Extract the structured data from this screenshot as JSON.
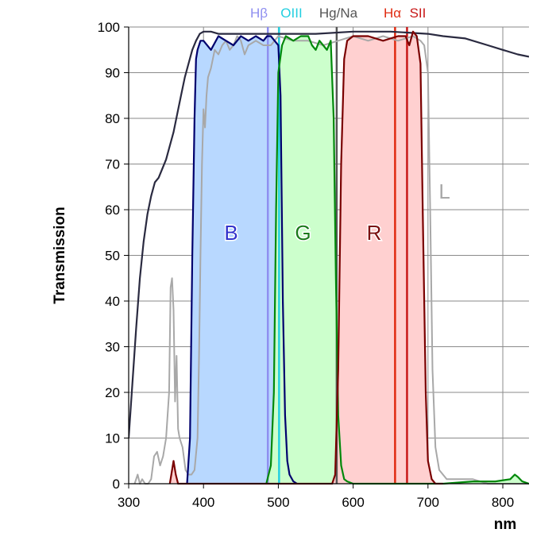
{
  "chart_data": {
    "type": "line",
    "title": "",
    "xlabel": "nm",
    "ylabel": "Transmission",
    "xlim": [
      300,
      835
    ],
    "ylim": [
      0,
      100
    ],
    "xticks": [
      "300",
      "400",
      "500",
      "600",
      "700",
      "800"
    ],
    "yticks": [
      "0",
      "10",
      "20",
      "30",
      "40",
      "50",
      "60",
      "70",
      "80",
      "90",
      "100"
    ],
    "grid": true,
    "band_labels": [
      {
        "text": "B",
        "x": 437,
        "y": 55,
        "color": "#3333cc"
      },
      {
        "text": "G",
        "x": 533,
        "y": 55,
        "color": "#1a7a1a"
      },
      {
        "text": "R",
        "x": 628,
        "y": 55,
        "color": "#7a1010"
      },
      {
        "text": "L",
        "x": 722,
        "y": 64,
        "color": "#a8a8a8"
      }
    ],
    "emission_lines": [
      {
        "label": "Hβ",
        "x": 486,
        "color": "#8f8ff0"
      },
      {
        "label": "OIII",
        "x": 501,
        "color": "#22cfe0"
      },
      {
        "label": "Hg/Na",
        "x": 578,
        "color": "#555555"
      },
      {
        "label": "Hα",
        "x": 656,
        "color": "#e02a10"
      },
      {
        "label": "SII",
        "x": 672,
        "color": "#c81818"
      }
    ],
    "series": [
      {
        "name": "L",
        "color": "#2a2a40",
        "x": [
          300,
          305,
          310,
          315,
          320,
          325,
          330,
          335,
          340,
          345,
          350,
          355,
          360,
          365,
          370,
          375,
          380,
          385,
          390,
          395,
          400,
          410,
          420,
          440,
          460,
          500,
          550,
          600,
          650,
          700,
          720,
          750,
          780,
          800,
          820,
          835
        ],
        "y": [
          10,
          22,
          34,
          45,
          53,
          59,
          63,
          66,
          67,
          69,
          71,
          74,
          77,
          81,
          85,
          89,
          92,
          95,
          97,
          98.5,
          99,
          99,
          98.5,
          98.5,
          98.5,
          98.5,
          98.5,
          99,
          99,
          98.5,
          98,
          97.5,
          96,
          95,
          94,
          93.5
        ]
      },
      {
        "name": "L-filter",
        "color": "#a8a8a8",
        "x": [
          308,
          312,
          315,
          318,
          322,
          326,
          330,
          334,
          338,
          342,
          346,
          350,
          354,
          356,
          358,
          360,
          362,
          364,
          366,
          368,
          372,
          376,
          380,
          384,
          388,
          392,
          394,
          396,
          398,
          400,
          402,
          404,
          406,
          410,
          415,
          420,
          425,
          430,
          435,
          440,
          445,
          450,
          455,
          460,
          470,
          480,
          490,
          500,
          520,
          540,
          560,
          580,
          600,
          620,
          640,
          660,
          680,
          690,
          695,
          700,
          703,
          706,
          710,
          715,
          725,
          740,
          760,
          780,
          800,
          820,
          835
        ],
        "y": [
          0,
          2,
          0,
          1,
          0,
          0,
          1,
          6,
          7,
          4,
          6,
          10,
          20,
          43,
          45,
          38,
          18,
          28,
          12,
          10,
          8,
          3,
          2,
          2,
          3,
          10,
          28,
          50,
          70,
          82,
          78,
          85,
          89,
          91,
          95,
          94,
          96,
          97,
          95,
          96,
          98,
          97,
          94,
          96,
          97,
          96,
          96,
          98,
          97,
          97,
          96,
          97,
          98,
          97,
          98,
          97,
          98,
          97,
          96,
          90,
          60,
          25,
          8,
          3,
          1,
          1,
          1,
          0,
          0,
          0,
          0
        ]
      },
      {
        "name": "B",
        "color": "#00006e",
        "fill": "#b8d8ff",
        "x": [
          378,
          382,
          385,
          388,
          390,
          392,
          396,
          400,
          410,
          420,
          430,
          440,
          450,
          460,
          470,
          480,
          485,
          490,
          495,
          500,
          503,
          506,
          509,
          512,
          515,
          520,
          525
        ],
        "y": [
          0,
          10,
          50,
          80,
          93,
          95,
          97,
          97,
          95,
          98,
          97,
          96,
          98,
          97,
          98,
          97,
          98,
          98,
          97,
          96,
          85,
          40,
          15,
          5,
          2,
          0.5,
          0
        ]
      },
      {
        "name": "G",
        "color": "#00880a",
        "fill": "#ccffcc",
        "x": [
          484,
          490,
          494,
          497,
          500,
          505,
          510,
          520,
          530,
          540,
          545,
          550,
          555,
          560,
          565,
          570,
          574,
          577,
          580,
          584,
          588,
          592,
          600,
          620,
          650,
          680,
          720,
          760,
          790,
          810,
          816,
          820,
          826,
          835
        ],
        "y": [
          0,
          4,
          20,
          60,
          90,
          96,
          98,
          97,
          98,
          98,
          96,
          95,
          97,
          96,
          95,
          97,
          80,
          45,
          15,
          4,
          1,
          0.5,
          0,
          0,
          0,
          0,
          0,
          0.5,
          0.5,
          1,
          2,
          1.5,
          0.5,
          0
        ]
      },
      {
        "name": "R",
        "color": "#7a0000",
        "fill": "#ffd0d0",
        "x": [
          355,
          357,
          360,
          363,
          366,
          369,
          372,
          572,
          576,
          580,
          584,
          588,
          592,
          600,
          620,
          640,
          660,
          670,
          675,
          680,
          685,
          690,
          693,
          697,
          700,
          705,
          710,
          720
        ],
        "y": [
          0,
          2,
          5,
          2,
          0,
          0,
          0,
          0,
          2,
          25,
          70,
          93,
          97,
          98,
          98,
          97,
          98,
          98,
          96,
          99,
          98,
          92,
          60,
          20,
          5,
          1,
          0,
          0
        ]
      }
    ]
  }
}
